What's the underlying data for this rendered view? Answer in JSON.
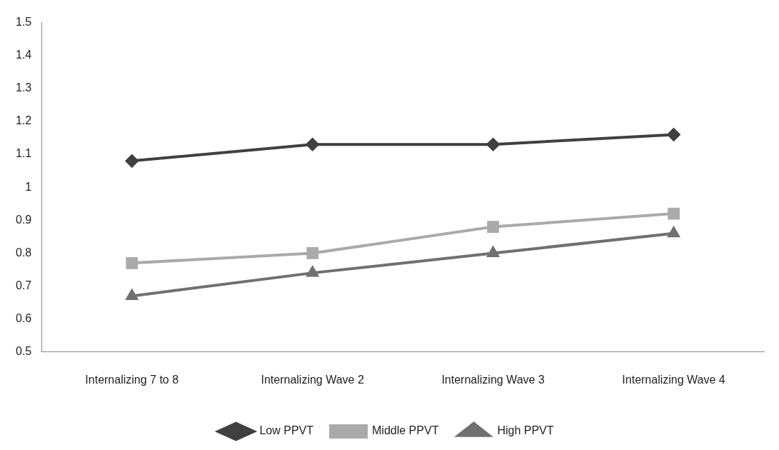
{
  "chart_data": {
    "type": "line",
    "categories": [
      "Internalizing 7 to 8",
      "Internalizing Wave 2",
      "Internalizing Wave 3",
      "Internalizing Wave 4"
    ],
    "series": [
      {
        "name": "Low PPVT",
        "color": "#404040",
        "marker": "diamond",
        "values": [
          1.08,
          1.13,
          1.13,
          1.16
        ]
      },
      {
        "name": "Middle PPVT",
        "color": "#aaaaaa",
        "marker": "square",
        "values": [
          0.77,
          0.8,
          0.88,
          0.92
        ]
      },
      {
        "name": "High PPVT",
        "color": "#707070",
        "marker": "triangle",
        "values": [
          0.67,
          0.74,
          0.8,
          0.86
        ]
      }
    ],
    "ylim": [
      0.5,
      1.5
    ],
    "yticks": [
      0.5,
      0.6,
      0.7,
      0.8,
      0.9,
      1,
      1.1,
      1.2,
      1.3,
      1.4,
      1.5
    ],
    "grid": false,
    "legend": "bottom",
    "line_style": "solid"
  }
}
